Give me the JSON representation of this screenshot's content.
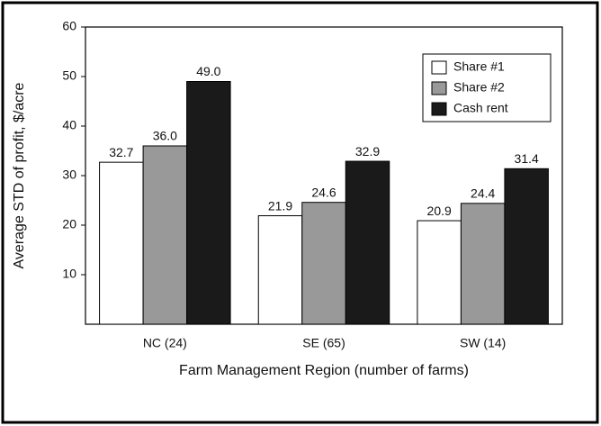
{
  "chart_data": {
    "type": "bar",
    "categories": [
      "NC (24)",
      "SE (65)",
      "SW (14)"
    ],
    "series": [
      {
        "name": "Share #1",
        "color": "#ffffff",
        "values": [
          32.7,
          21.9,
          20.9
        ],
        "value_labels": [
          "32.7",
          "21.9",
          "20.9"
        ]
      },
      {
        "name": "Share #2",
        "color": "#999999",
        "values": [
          36.0,
          24.6,
          24.4
        ],
        "value_labels": [
          "36.0",
          "24.6",
          "24.4"
        ]
      },
      {
        "name": "Cash rent",
        "color": "#1a1a1a",
        "values": [
          49.0,
          32.9,
          31.4
        ],
        "value_labels": [
          "49.0",
          "32.9",
          "31.4"
        ]
      }
    ],
    "y_label": "Average STD of profit, $/acre",
    "x_label": "Farm Management Region (number of farms)",
    "ylim": [
      0,
      60
    ],
    "yticks": [
      10,
      20,
      30,
      40,
      50,
      60
    ],
    "grid": false,
    "legend": "upper right"
  }
}
